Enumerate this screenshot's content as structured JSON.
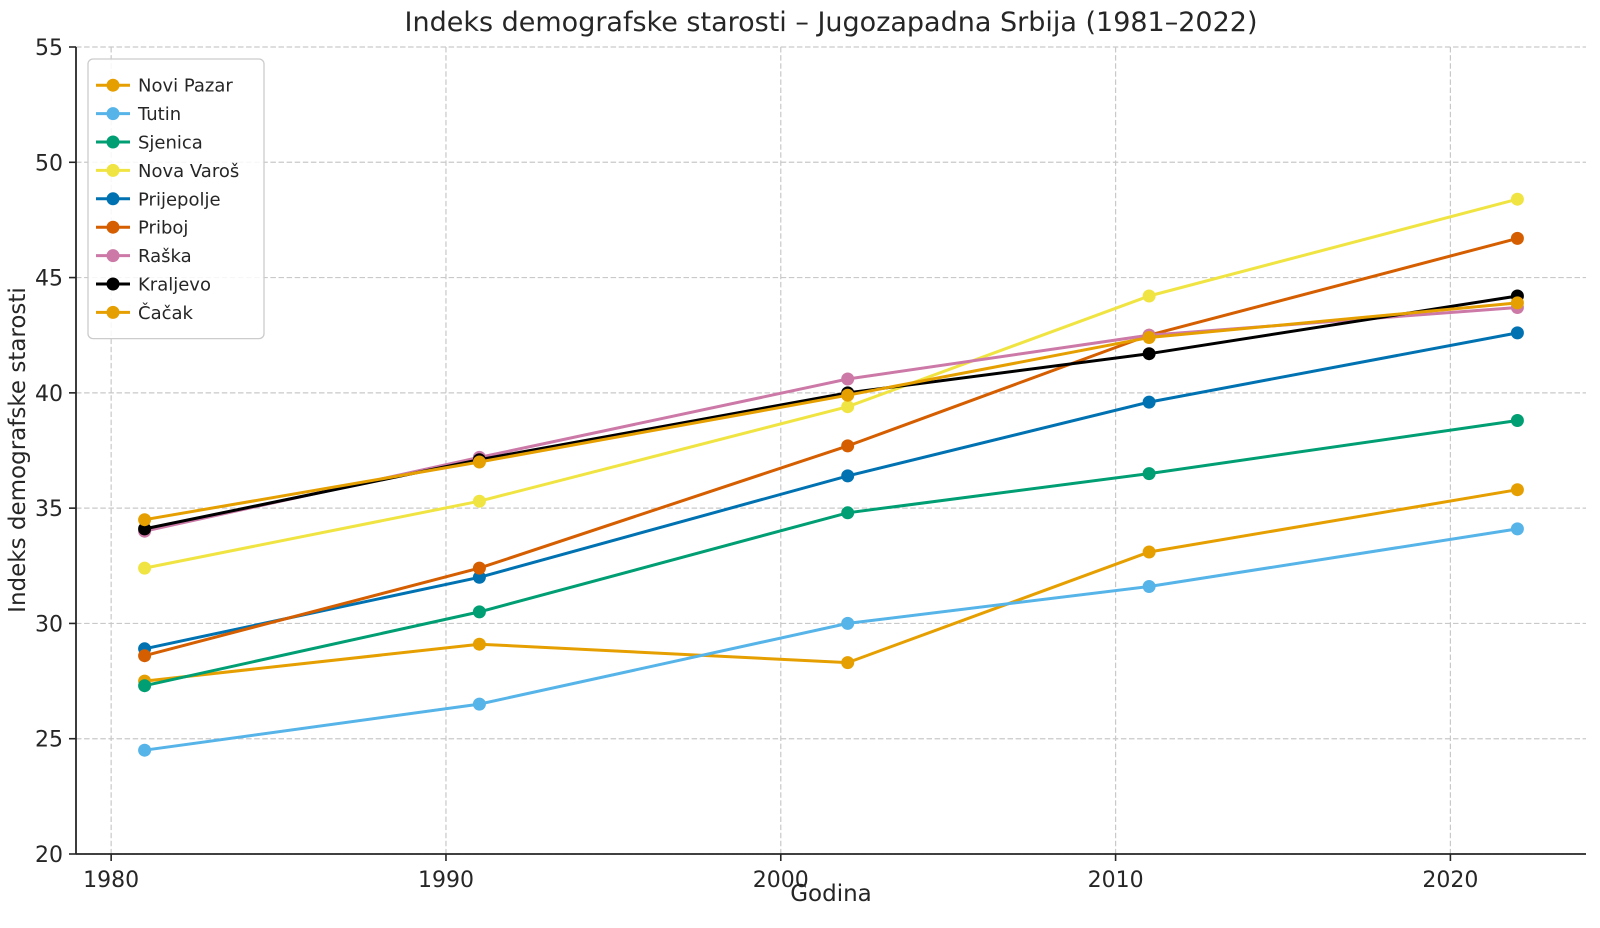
{
  "chart_data": {
    "type": "line",
    "title": "Indeks demografske starosti – Jugozapadna Srbija (1981–2022)",
    "xlabel": "Godina",
    "ylabel": "Indeks demografske starosti",
    "x": [
      1981,
      1991,
      2002,
      2011,
      2022
    ],
    "series": [
      {
        "name": "Novi Pazar",
        "color": "#E69F00",
        "values": [
          27.5,
          29.1,
          28.3,
          33.1,
          35.8
        ]
      },
      {
        "name": "Tutin",
        "color": "#56B4E9",
        "values": [
          24.5,
          26.5,
          30.0,
          31.6,
          34.1
        ]
      },
      {
        "name": "Sjenica",
        "color": "#009E73",
        "values": [
          27.3,
          30.5,
          34.8,
          36.5,
          38.8
        ]
      },
      {
        "name": "Nova Varoš",
        "color": "#F0E442",
        "values": [
          32.4,
          35.3,
          39.4,
          44.2,
          48.4
        ]
      },
      {
        "name": "Prijepolje",
        "color": "#0072B2",
        "values": [
          28.9,
          32.0,
          36.4,
          39.6,
          42.6
        ]
      },
      {
        "name": "Priboj",
        "color": "#D55E00",
        "values": [
          28.6,
          32.4,
          37.7,
          42.5,
          46.7
        ]
      },
      {
        "name": "Raška",
        "color": "#CC79A7",
        "values": [
          34.0,
          37.2,
          40.6,
          42.5,
          43.7
        ]
      },
      {
        "name": "Kraljevo",
        "color": "#000000",
        "values": [
          34.1,
          37.1,
          40.0,
          41.7,
          44.2
        ]
      },
      {
        "name": "Čačak",
        "color": "#E69F00",
        "values": [
          34.5,
          37.0,
          39.9,
          42.4,
          43.9
        ]
      }
    ],
    "xticks": [
      1980,
      1990,
      2000,
      2010,
      2020
    ],
    "yticks": [
      20,
      25,
      30,
      35,
      40,
      45,
      50,
      55
    ],
    "xlim": [
      1978.95,
      2024.05
    ],
    "ylim": [
      20,
      55
    ],
    "grid": true,
    "grid_color": "#c9c9c9",
    "spine_color": "#262626",
    "legend_position": "upper left"
  }
}
